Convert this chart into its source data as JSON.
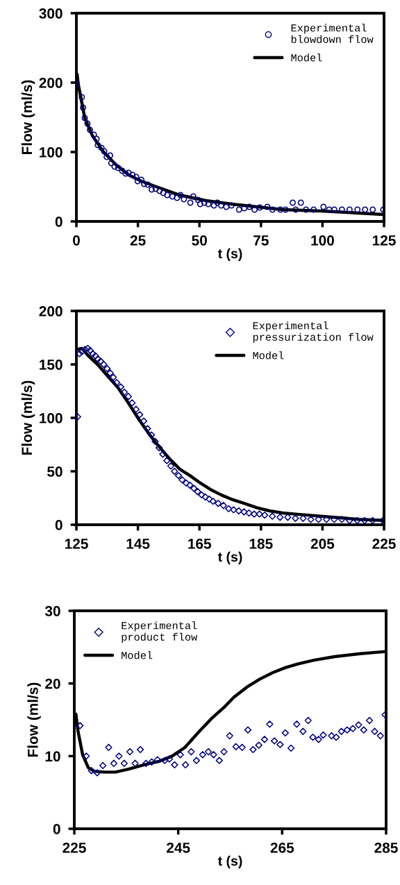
{
  "chart_data": [
    {
      "type": "scatter",
      "xlabel": "t (s)",
      "ylabel": "Flow (ml/s)",
      "xlim": [
        0,
        125
      ],
      "ylim": [
        0,
        300
      ],
      "xticks": [
        0,
        25,
        50,
        75,
        100,
        125
      ],
      "yticks": [
        0,
        100,
        200,
        300
      ],
      "grid": false,
      "legend": "top right",
      "series": [
        {
          "name": "Experimental\nblowdown flow",
          "marker": "circle",
          "color": "#000080",
          "x": [
            0.2,
            2.2,
            2.7,
            3.4,
            4.5,
            5.5,
            7.1,
            8.2,
            8.7,
            10.2,
            11.3,
            12.3,
            13.7,
            14.2,
            15.5,
            17,
            18.6,
            20,
            21.2,
            22.8,
            24.3,
            24.9,
            26.4,
            27.5,
            29,
            30.6,
            32.2,
            33.8,
            35.3,
            36.9,
            39,
            40.9,
            42.3,
            43.7,
            46.3,
            47.5,
            49.4,
            50.3,
            52,
            53.6,
            55.9,
            57.3,
            58.8,
            60.9,
            63,
            66.1,
            68.2,
            70.3,
            72.4,
            74.5,
            77.6,
            79.7,
            82.9,
            85,
            87.9,
            89.1,
            91.2,
            93.3,
            96.4,
            100.4,
            102.7,
            104.8,
            107.9,
            111,
            114.2,
            117.3,
            120.4,
            124.7
          ],
          "values": [
            198,
            179,
            164,
            149,
            141,
            132,
            125,
            119,
            110,
            106,
            101,
            93,
            95,
            84,
            79,
            77,
            73,
            69,
            70,
            67,
            64,
            58,
            60,
            54,
            53,
            46,
            47,
            44,
            41,
            38,
            36,
            34,
            38,
            32,
            27,
            36,
            31,
            25,
            27,
            25,
            23,
            27,
            23,
            21,
            23,
            17,
            19,
            21,
            17,
            20,
            21,
            17,
            17,
            17,
            27,
            17,
            27,
            17,
            17,
            21,
            17,
            17,
            17,
            17,
            17,
            17,
            17,
            17
          ]
        },
        {
          "name": "Model",
          "type": "line",
          "marker": "none",
          "line_style": "solid",
          "color": "#000000",
          "x": [
            0.3,
            0.8,
            3.4,
            6.6,
            10.8,
            16,
            21.2,
            26.4,
            31.7,
            42,
            52.6,
            63,
            73.5,
            83.9,
            99.6,
            110,
            124.7
          ],
          "values": [
            212,
            197,
            149,
            123,
            101,
            82,
            67,
            58,
            51,
            38,
            30,
            25,
            21,
            17,
            15,
            13,
            10
          ]
        }
      ]
    },
    {
      "type": "scatter",
      "xlabel": "t (s)",
      "ylabel": "Flow (ml/s)",
      "xlim": [
        125,
        225
      ],
      "ylim": [
        0,
        200
      ],
      "xticks": [
        125,
        145,
        165,
        185,
        205,
        225
      ],
      "yticks": [
        0,
        50,
        100,
        150,
        200
      ],
      "grid": false,
      "legend": "top right",
      "series": [
        {
          "name": "Experimental\npressurization flow",
          "marker": "diamond",
          "color": "#000080",
          "x": [
            125.4,
            126,
            126.8,
            127.8,
            128.7,
            129.5,
            130.3,
            131.2,
            132,
            132.9,
            133.9,
            135,
            136,
            137,
            138.1,
            139.4,
            140.6,
            141.9,
            143.1,
            144.4,
            145.6,
            146.9,
            148.1,
            149.4,
            150.6,
            151.9,
            153.1,
            154.4,
            155.7,
            156.9,
            158.2,
            159.4,
            160.7,
            161.9,
            163.2,
            164.4,
            165.7,
            166.9,
            168.2,
            169.4,
            171.1,
            172.8,
            174.5,
            176.1,
            177.8,
            179.5,
            181.1,
            182.8,
            184.5,
            186.2,
            188.7,
            191.2,
            193.7,
            196.2,
            198.7,
            201.2,
            203.7,
            206.3,
            208.8,
            211.3,
            213.8,
            216.3,
            218.7,
            221.3,
            224.6
          ],
          "values": [
            101,
            160,
            162,
            164,
            165,
            163,
            160,
            158,
            155,
            153,
            150,
            146,
            142,
            138,
            133,
            129,
            124,
            120,
            114,
            108,
            103,
            97,
            90,
            84,
            78,
            72,
            66,
            60,
            55,
            50,
            46,
            42,
            39,
            37,
            34,
            31,
            28,
            26,
            24,
            22,
            20,
            18,
            15,
            14,
            13,
            12,
            11,
            10,
            10,
            9,
            8,
            7,
            7,
            6,
            6,
            5,
            5,
            5,
            5,
            5,
            4,
            4,
            4,
            4,
            4
          ]
        },
        {
          "name": "Model",
          "type": "line",
          "marker": "none",
          "line_style": "solid",
          "color": "#000000",
          "x": [
            125,
            126.8,
            128.9,
            131.9,
            135.2,
            138.6,
            141.9,
            145.2,
            148.6,
            151.9,
            155.2,
            158.6,
            161.9,
            165.3,
            168.6,
            172,
            175.3,
            179.5,
            183.6,
            187.8,
            192,
            196.2,
            200.3,
            204.5,
            208.7,
            212.9,
            217,
            225
          ],
          "values": [
            164,
            165,
            158,
            150,
            139,
            128,
            114,
            99,
            85,
            73,
            62,
            52,
            46,
            39,
            33,
            28,
            24,
            20,
            16,
            13,
            11,
            10,
            9,
            8,
            7,
            6,
            5,
            4
          ]
        }
      ]
    },
    {
      "type": "scatter",
      "xlabel": "t (s)",
      "ylabel": "Flow (ml/s)",
      "xlim": [
        225,
        285
      ],
      "ylim": [
        0,
        30
      ],
      "xticks": [
        225,
        245,
        265,
        285
      ],
      "yticks": [
        0,
        10,
        20,
        30
      ],
      "grid": false,
      "legend": "top left",
      "series": [
        {
          "name": "Experimental\nproduct flow",
          "marker": "diamond",
          "color": "#000080",
          "x": [
            226.1,
            227.3,
            228.3,
            229.4,
            230.5,
            231.6,
            232.6,
            233.6,
            234.6,
            235.7,
            236.7,
            237.7,
            238.8,
            239.9,
            241,
            242.4,
            243.3,
            244.3,
            245.4,
            246.4,
            247.5,
            248.5,
            249.7,
            250.8,
            251.8,
            252.9,
            253.8,
            254.9,
            256.1,
            257.3,
            258.4,
            259.4,
            260.5,
            261.6,
            262.6,
            263.5,
            264.6,
            265.6,
            266.7,
            267.8,
            269,
            270,
            270.9,
            272,
            272.9,
            274.5,
            275.4,
            276.4,
            277.5,
            278.6,
            279.7,
            280.7,
            281.8,
            282.8,
            283.9,
            284.8
          ],
          "values": [
            14.2,
            10,
            8,
            7.7,
            8.7,
            11.2,
            9,
            10,
            9,
            10.6,
            9,
            10.9,
            9,
            9.2,
            9.5,
            9.4,
            9.6,
            8.8,
            10.2,
            8.8,
            10.6,
            9.4,
            10.2,
            10.6,
            10.2,
            9.4,
            10.6,
            12.8,
            11.3,
            11.2,
            13.6,
            10.9,
            11.5,
            12.3,
            14.4,
            12.1,
            11.6,
            13.2,
            11.1,
            14.4,
            13.4,
            14.9,
            12.6,
            12.3,
            12.9,
            12.8,
            12.6,
            13.4,
            13.6,
            13.8,
            14.3,
            13.6,
            14.9,
            13.4,
            12.8,
            15.7
          ]
        },
        {
          "name": "Model",
          "type": "line",
          "marker": "none",
          "line_style": "solid",
          "color": "#000000",
          "x": [
            225.3,
            225.7,
            226.6,
            227.7,
            228.9,
            230.9,
            232.9,
            235.4,
            238.4,
            241.4,
            243.8,
            246.3,
            248.8,
            251.3,
            253.8,
            255.7,
            258.2,
            260.7,
            263.2,
            265.7,
            268.1,
            271.1,
            275.1,
            280,
            285
          ],
          "values": [
            15.8,
            13.5,
            10.2,
            8.4,
            7.9,
            7.8,
            7.8,
            8.2,
            8.8,
            9.3,
            10,
            11.2,
            13.2,
            15.1,
            16.7,
            18.1,
            19.5,
            20.6,
            21.5,
            22.2,
            22.7,
            23.2,
            23.7,
            24.1,
            24.4
          ]
        }
      ]
    }
  ]
}
